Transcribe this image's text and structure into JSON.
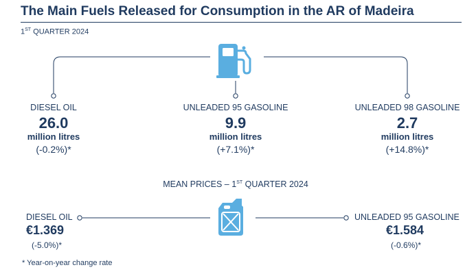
{
  "header": {
    "title": "The Main Fuels Released for Consumption in the AR of Madeira",
    "period_prefix": "1",
    "period_sup": "ST",
    "period_suffix": " QUARTER 2024"
  },
  "icons": {
    "top": "fuel-pump-icon",
    "middle": "jerrycan-icon"
  },
  "colors": {
    "navy": "#1f3a5f",
    "icon_blue": "#5aaee0",
    "line": "#1f3a5f"
  },
  "volumes": [
    {
      "label": "DIESEL OIL",
      "value": "26.0",
      "unit": "million litres",
      "change": "(-0.2%)*"
    },
    {
      "label": "UNLEADED 95 GASOLINE",
      "value": "9.9",
      "unit": "million litres",
      "change": "(+7.1%)*"
    },
    {
      "label": "UNLEADED 98 GASOLINE",
      "value": "2.7",
      "unit": "million litres",
      "change": "(+14.8%)*"
    }
  ],
  "prices": {
    "heading_prefix": "MEAN PRICES – 1",
    "heading_sup": "ST",
    "heading_suffix": " QUARTER 2024",
    "left": {
      "label": "DIESEL OIL",
      "value": "€1.369",
      "change": "(-5.0%)*"
    },
    "right": {
      "label": "UNLEADED 95 GASOLINE",
      "value": "€1.584",
      "change": "(-0.6%)*"
    }
  },
  "footnote": "* Year-on-year change rate"
}
